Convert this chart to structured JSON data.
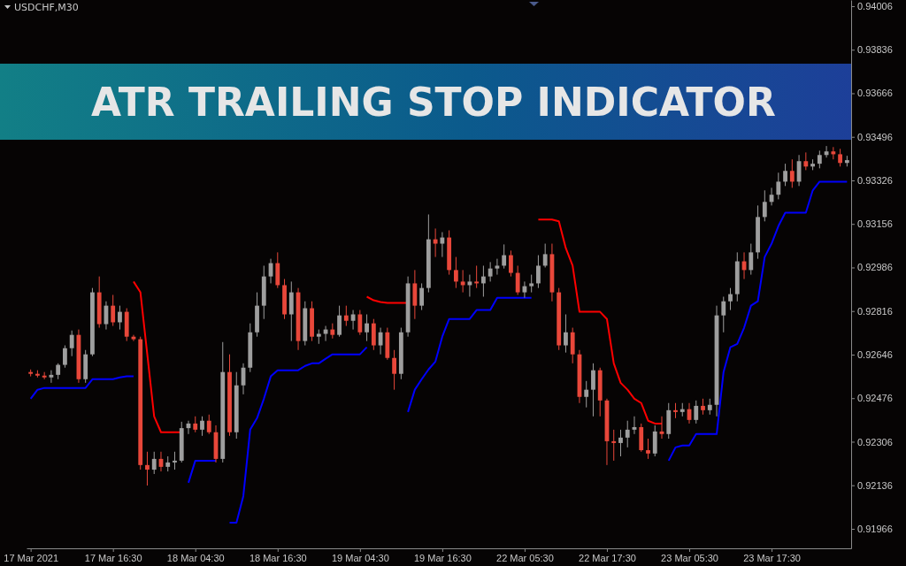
{
  "chart_data": {
    "type": "candlestick",
    "title": "ATR TRAILING STOP INDICATOR",
    "subtitle": "USDCHF,M30",
    "categories": [
      "17 Mar 2021",
      null,
      null,
      null,
      null,
      null,
      null,
      null,
      null,
      null,
      null,
      null,
      "17 Mar 16:30",
      null,
      null,
      null,
      null,
      null,
      null,
      null,
      null,
      null,
      null,
      null,
      "18 Mar 04:30",
      null,
      null,
      null,
      null,
      null,
      null,
      null,
      null,
      null,
      null,
      null,
      "18 Mar 16:30",
      null,
      null,
      null,
      null,
      null,
      null,
      null,
      null,
      null,
      null,
      null,
      "19 Mar 04:30",
      null,
      null,
      null,
      null,
      null,
      null,
      null,
      null,
      null,
      null,
      null,
      "19 Mar 16:30",
      null,
      null,
      null,
      null,
      null,
      null,
      null,
      null,
      null,
      null,
      null,
      "22 Mar 05:30",
      null,
      null,
      null,
      null,
      null,
      null,
      null,
      null,
      null,
      null,
      null,
      "22 Mar 17:30",
      null,
      null,
      null,
      null,
      null,
      null,
      null,
      null,
      null,
      null,
      null,
      "23 Mar 05:30",
      null,
      null,
      null,
      null,
      null,
      null,
      null,
      null,
      null,
      null,
      null,
      "23 Mar 17:30",
      null,
      null,
      null,
      null,
      null,
      null,
      null,
      null,
      null,
      null,
      null
    ],
    "ohlc": [
      [
        0.92578,
        0.92588,
        0.92561,
        0.92571
      ],
      [
        0.92571,
        0.92585,
        0.92557,
        0.92564
      ],
      [
        0.92564,
        0.92578,
        0.9255,
        0.92557
      ],
      [
        0.92557,
        0.92585,
        0.92536,
        0.92567
      ],
      [
        0.92567,
        0.92612,
        0.9255,
        0.92606
      ],
      [
        0.92606,
        0.92682,
        0.92595,
        0.92671
      ],
      [
        0.92671,
        0.9274,
        0.9264,
        0.92723
      ],
      [
        0.92723,
        0.92744,
        0.92536,
        0.9255
      ],
      [
        0.9255,
        0.92664,
        0.92536,
        0.92647
      ],
      [
        0.92647,
        0.92906,
        0.9264,
        0.92889
      ],
      [
        0.92889,
        0.92951,
        0.92751,
        0.92765
      ],
      [
        0.92765,
        0.92854,
        0.92744,
        0.92837
      ],
      [
        0.92837,
        0.92879,
        0.92758,
        0.92772
      ],
      [
        0.92772,
        0.92837,
        0.92744,
        0.92813
      ],
      [
        0.92813,
        0.92827,
        0.92699,
        0.92716
      ],
      [
        0.92716,
        0.92723,
        0.92699,
        0.92706
      ],
      [
        0.92706,
        0.92716,
        0.92197,
        0.92215
      ],
      [
        0.92215,
        0.92267,
        0.92135,
        0.92197
      ],
      [
        0.92197,
        0.92267,
        0.9218,
        0.92239
      ],
      [
        0.92239,
        0.92267,
        0.9219,
        0.92208
      ],
      [
        0.92208,
        0.92249,
        0.9219,
        0.92225
      ],
      [
        0.92225,
        0.92267,
        0.92197,
        0.92232
      ],
      [
        0.92232,
        0.92384,
        0.92225,
        0.92359
      ],
      [
        0.92359,
        0.92388,
        0.92336,
        0.92377
      ],
      [
        0.92377,
        0.92405,
        0.92343,
        0.92353
      ],
      [
        0.92353,
        0.92405,
        0.92329,
        0.92388
      ],
      [
        0.92388,
        0.92412,
        0.92336,
        0.92343
      ],
      [
        0.92343,
        0.9237,
        0.92225,
        0.92239
      ],
      [
        0.92239,
        0.92695,
        0.92225,
        0.92578
      ],
      [
        0.92578,
        0.92647,
        0.92329,
        0.92343
      ],
      [
        0.92343,
        0.92578,
        0.92318,
        0.92526
      ],
      [
        0.92526,
        0.92612,
        0.92491,
        0.92595
      ],
      [
        0.92595,
        0.92768,
        0.92578,
        0.92733
      ],
      [
        0.92733,
        0.92889,
        0.92716,
        0.92837
      ],
      [
        0.92837,
        0.92993,
        0.92785,
        0.92951
      ],
      [
        0.92951,
        0.9302,
        0.92924,
        0.93003
      ],
      [
        0.93003,
        0.93045,
        0.92906,
        0.92917
      ],
      [
        0.92917,
        0.92941,
        0.92785,
        0.92803
      ],
      [
        0.92803,
        0.92931,
        0.92699,
        0.92889
      ],
      [
        0.92889,
        0.92906,
        0.92664,
        0.92699
      ],
      [
        0.92699,
        0.92854,
        0.92682,
        0.92827
      ],
      [
        0.92827,
        0.92854,
        0.92699,
        0.92716
      ],
      [
        0.92716,
        0.92744,
        0.92688,
        0.92727
      ],
      [
        0.92727,
        0.92758,
        0.92699,
        0.92744
      ],
      [
        0.92744,
        0.92768,
        0.92709,
        0.92723
      ],
      [
        0.92723,
        0.92837,
        0.92716,
        0.92799
      ],
      [
        0.92799,
        0.92837,
        0.92758,
        0.92778
      ],
      [
        0.92778,
        0.9282,
        0.92744,
        0.92803
      ],
      [
        0.92803,
        0.9282,
        0.92723,
        0.92733
      ],
      [
        0.92733,
        0.92803,
        0.92699,
        0.92768
      ],
      [
        0.92768,
        0.92785,
        0.92664,
        0.92682
      ],
      [
        0.92682,
        0.92751,
        0.92647,
        0.92733
      ],
      [
        0.92733,
        0.92751,
        0.92626,
        0.92633
      ],
      [
        0.92633,
        0.92664,
        0.92509,
        0.92571
      ],
      [
        0.92571,
        0.92751,
        0.9255,
        0.92733
      ],
      [
        0.92733,
        0.92951,
        0.92716,
        0.92924
      ],
      [
        0.92924,
        0.92976,
        0.92785,
        0.92837
      ],
      [
        0.92837,
        0.92924,
        0.9282,
        0.92906
      ],
      [
        0.92906,
        0.93193,
        0.92889,
        0.93096
      ],
      [
        0.93096,
        0.93138,
        0.93027,
        0.93079
      ],
      [
        0.93079,
        0.93124,
        0.93027,
        0.93103
      ],
      [
        0.93103,
        0.93131,
        0.92958,
        0.92976
      ],
      [
        0.92976,
        0.93027,
        0.92906,
        0.92931
      ],
      [
        0.92931,
        0.92976,
        0.92889,
        0.92917
      ],
      [
        0.92917,
        0.92958,
        0.92872,
        0.92931
      ],
      [
        0.92931,
        0.92993,
        0.92906,
        0.92924
      ],
      [
        0.92924,
        0.92993,
        0.92872,
        0.92951
      ],
      [
        0.92951,
        0.93007,
        0.92931,
        0.92982
      ],
      [
        0.92982,
        0.9302,
        0.92958,
        0.92993
      ],
      [
        0.92993,
        0.93076,
        0.92982,
        0.93034
      ],
      [
        0.93034,
        0.93052,
        0.92951,
        0.92965
      ],
      [
        0.92965,
        0.92993,
        0.92879,
        0.92889
      ],
      [
        0.92889,
        0.92931,
        0.92868,
        0.92913
      ],
      [
        0.92913,
        0.92958,
        0.92889,
        0.92924
      ],
      [
        0.92924,
        0.93034,
        0.92906,
        0.92993
      ],
      [
        0.92993,
        0.93079,
        0.92986,
        0.93038
      ],
      [
        0.93038,
        0.93079,
        0.92854,
        0.92889
      ],
      [
        0.92889,
        0.92906,
        0.92664,
        0.92682
      ],
      [
        0.92682,
        0.92803,
        0.92654,
        0.92733
      ],
      [
        0.92733,
        0.92751,
        0.92612,
        0.92647
      ],
      [
        0.92647,
        0.92664,
        0.92457,
        0.92481
      ],
      [
        0.92481,
        0.92543,
        0.9244,
        0.92509
      ],
      [
        0.92509,
        0.92612,
        0.92405,
        0.92585
      ],
      [
        0.92585,
        0.92595,
        0.92405,
        0.92467
      ],
      [
        0.92467,
        0.92474,
        0.92215,
        0.92308
      ],
      [
        0.92308,
        0.92353,
        0.92232,
        0.92301
      ],
      [
        0.92301,
        0.92353,
        0.92249,
        0.92322
      ],
      [
        0.92322,
        0.92388,
        0.92284,
        0.92353
      ],
      [
        0.92353,
        0.92405,
        0.92336,
        0.92363
      ],
      [
        0.92363,
        0.92377,
        0.92267,
        0.92273
      ],
      [
        0.92273,
        0.92318,
        0.92239,
        0.9226
      ],
      [
        0.9226,
        0.9237,
        0.92249,
        0.92346
      ],
      [
        0.92346,
        0.92405,
        0.92318,
        0.92336
      ],
      [
        0.92336,
        0.92457,
        0.92318,
        0.92429
      ],
      [
        0.92429,
        0.92457,
        0.92398,
        0.92422
      ],
      [
        0.92422,
        0.92457,
        0.92405,
        0.92433
      ],
      [
        0.92433,
        0.92457,
        0.92377,
        0.92391
      ],
      [
        0.92391,
        0.92467,
        0.92377,
        0.92446
      ],
      [
        0.92446,
        0.92474,
        0.92412,
        0.92429
      ],
      [
        0.92429,
        0.92474,
        0.92412,
        0.9245
      ],
      [
        0.9245,
        0.92837,
        0.92405,
        0.92799
      ],
      [
        0.92799,
        0.92872,
        0.92733,
        0.92854
      ],
      [
        0.92854,
        0.92906,
        0.9282,
        0.92882
      ],
      [
        0.92882,
        0.93045,
        0.92854,
        0.9301
      ],
      [
        0.9301,
        0.93045,
        0.92941,
        0.92976
      ],
      [
        0.92976,
        0.93079,
        0.92958,
        0.93045
      ],
      [
        0.93045,
        0.93228,
        0.9302,
        0.93183
      ],
      [
        0.93183,
        0.93287,
        0.93166,
        0.93242
      ],
      [
        0.93242,
        0.93297,
        0.93228,
        0.9327
      ],
      [
        0.9327,
        0.93356,
        0.93252,
        0.93321
      ],
      [
        0.93321,
        0.93391,
        0.93304,
        0.93363
      ],
      [
        0.93363,
        0.93408,
        0.93297,
        0.93321
      ],
      [
        0.93321,
        0.93425,
        0.93304,
        0.93401
      ],
      [
        0.93401,
        0.93435,
        0.93366,
        0.9338
      ],
      [
        0.9338,
        0.93408,
        0.93366,
        0.93391
      ],
      [
        0.93391,
        0.93442,
        0.93373,
        0.93425
      ],
      [
        0.93425,
        0.9346,
        0.93415,
        0.93439
      ],
      [
        0.93439,
        0.93456,
        0.93408,
        0.93428
      ],
      [
        0.93428,
        0.93449,
        0.9338,
        0.93394
      ],
      [
        0.93394,
        0.93422,
        0.9338,
        0.93405
      ]
    ],
    "colors": [
      "#e8473a",
      "#e8473a",
      "#e8473a",
      "#9e9e9e",
      "#9e9e9e",
      "#9e9e9e",
      "#9e9e9e",
      "#e8473a",
      "#9e9e9e",
      "#9e9e9e",
      "#e8473a",
      "#9e9e9e",
      "#e8473a",
      "#9e9e9e",
      "#e8473a",
      "#e8473a",
      "#e8473a",
      "#e8473a",
      "#9e9e9e",
      "#e8473a",
      "#9e9e9e",
      "#9e9e9e",
      "#9e9e9e",
      "#9e9e9e",
      "#e8473a",
      "#9e9e9e",
      "#e8473a",
      "#e8473a",
      "#9e9e9e",
      "#e8473a",
      "#9e9e9e",
      "#9e9e9e",
      "#9e9e9e",
      "#9e9e9e",
      "#9e9e9e",
      "#9e9e9e",
      "#e8473a",
      "#e8473a",
      "#9e9e9e",
      "#e8473a",
      "#9e9e9e",
      "#e8473a",
      "#9e9e9e",
      "#9e9e9e",
      "#e8473a",
      "#9e9e9e",
      "#e8473a",
      "#9e9e9e",
      "#e8473a",
      "#9e9e9e",
      "#e8473a",
      "#9e9e9e",
      "#e8473a",
      "#e8473a",
      "#9e9e9e",
      "#9e9e9e",
      "#e8473a",
      "#9e9e9e",
      "#9e9e9e",
      "#e8473a",
      "#9e9e9e",
      "#e8473a",
      "#e8473a",
      "#e8473a",
      "#9e9e9e",
      "#e8473a",
      "#9e9e9e",
      "#9e9e9e",
      "#9e9e9e",
      "#9e9e9e",
      "#e8473a",
      "#e8473a",
      "#9e9e9e",
      "#9e9e9e",
      "#9e9e9e",
      "#9e9e9e",
      "#e8473a",
      "#e8473a",
      "#9e9e9e",
      "#e8473a",
      "#e8473a",
      "#9e9e9e",
      "#9e9e9e",
      "#e8473a",
      "#e8473a",
      "#e8473a",
      "#9e9e9e",
      "#9e9e9e",
      "#9e9e9e",
      "#e8473a",
      "#e8473a",
      "#9e9e9e",
      "#e8473a",
      "#9e9e9e",
      "#e8473a",
      "#9e9e9e",
      "#e8473a",
      "#9e9e9e",
      "#e8473a",
      "#9e9e9e",
      "#9e9e9e",
      "#9e9e9e",
      "#9e9e9e",
      "#9e9e9e",
      "#e8473a",
      "#9e9e9e",
      "#9e9e9e",
      "#9e9e9e",
      "#9e9e9e",
      "#9e9e9e",
      "#9e9e9e",
      "#e8473a",
      "#9e9e9e",
      "#e8473a",
      "#9e9e9e",
      "#9e9e9e",
      "#9e9e9e",
      "#e8473a",
      "#e8473a",
      "#9e9e9e"
    ],
    "series": [
      {
        "type": "line",
        "color": "#0000ff",
        "values": [
          0.92474,
          0.92509,
          0.92516,
          0.92516,
          0.92516,
          0.92516,
          0.92516,
          0.92516,
          0.92516,
          0.9255,
          0.9255,
          0.9255,
          0.9255,
          0.92557,
          0.92561,
          0.92561,
          null,
          null,
          null,
          null,
          null,
          null,
          null,
          0.92146,
          0.92232,
          0.92232,
          0.92232,
          0.92232,
          null,
          0.9199,
          0.9199,
          0.92094,
          0.92353,
          0.92398,
          0.92474,
          0.92561,
          0.92585,
          0.92585,
          0.92585,
          0.92585,
          0.92602,
          0.92612,
          0.92612,
          0.9263,
          0.92647,
          0.92647,
          0.92647,
          0.92647,
          0.92647,
          0.92675,
          null,
          null,
          null,
          null,
          null,
          0.92422,
          0.92509,
          0.9255,
          0.92588,
          0.92619,
          0.92716,
          0.92785,
          0.92785,
          0.92785,
          0.92785,
          0.9282,
          0.9282,
          0.9282,
          0.92868,
          0.92868,
          0.92868,
          0.92868,
          0.92868,
          0.92868,
          null,
          null,
          null,
          null,
          null,
          null,
          null,
          null,
          null,
          null,
          null,
          null,
          null,
          null,
          null,
          null,
          null,
          null,
          null,
          0.92232,
          0.92284,
          0.92291,
          0.92291,
          0.92336,
          0.92336,
          0.92336,
          0.92336,
          0.92578,
          0.92675,
          0.92688,
          0.92751,
          0.92837,
          0.92854,
          0.93027,
          0.93079,
          0.93148,
          0.932,
          0.932,
          0.932,
          0.932,
          0.93287,
          0.93321,
          0.93321,
          0.93321,
          0.93321,
          0.93321
        ]
      },
      {
        "type": "line",
        "color": "#ff0000",
        "values": [
          null,
          null,
          null,
          null,
          null,
          null,
          null,
          null,
          null,
          null,
          null,
          null,
          null,
          null,
          null,
          0.92931,
          0.92889,
          0.92647,
          0.92405,
          0.92343,
          0.92343,
          0.92343,
          0.92343,
          null,
          null,
          null,
          null,
          null,
          null,
          null,
          null,
          null,
          null,
          null,
          null,
          null,
          null,
          null,
          null,
          null,
          null,
          null,
          null,
          null,
          null,
          null,
          null,
          null,
          null,
          0.92872,
          0.92858,
          0.92851,
          0.92848,
          0.92848,
          0.92848,
          0.92848,
          null,
          null,
          null,
          null,
          null,
          null,
          null,
          null,
          null,
          null,
          null,
          null,
          null,
          null,
          null,
          null,
          null,
          null,
          0.93173,
          0.93173,
          0.93173,
          0.93166,
          0.93062,
          0.92993,
          0.92813,
          0.92813,
          0.92813,
          0.92813,
          0.92785,
          0.92612,
          0.92536,
          0.92509,
          0.92474,
          0.92457,
          0.92388,
          0.92377,
          0.92377,
          null,
          null,
          null,
          null,
          null,
          null,
          null,
          null,
          null,
          null,
          null,
          null,
          null,
          null,
          null,
          null,
          null,
          null,
          null,
          null,
          null,
          null,
          null,
          null,
          null,
          null,
          null
        ]
      }
    ],
    "ylim": [
      0.9189,
      0.9403
    ],
    "yticks": [
      0.91966,
      0.92136,
      0.92306,
      0.92476,
      0.92646,
      0.92816,
      0.92986,
      0.93156,
      0.93326,
      0.93496,
      0.93666,
      0.93836,
      0.94006
    ]
  }
}
